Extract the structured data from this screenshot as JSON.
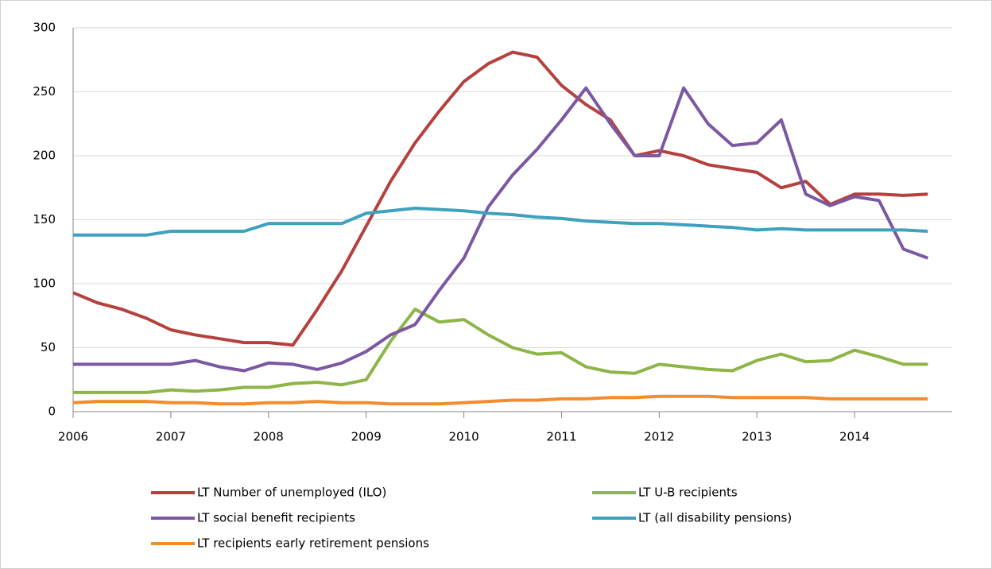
{
  "chart_data": {
    "type": "line",
    "x": [
      2006,
      2006.25,
      2006.5,
      2006.75,
      2007,
      2007.25,
      2007.5,
      2007.75,
      2008,
      2008.25,
      2008.5,
      2008.75,
      2009,
      2009.25,
      2009.5,
      2009.75,
      2010,
      2010.25,
      2010.5,
      2010.75,
      2011,
      2011.25,
      2011.5,
      2011.75,
      2012,
      2012.25,
      2012.5,
      2012.75,
      2013,
      2013.25,
      2013.5,
      2013.75,
      2014,
      2014.25,
      2014.5,
      2014.75
    ],
    "series": [
      {
        "name": "LT Number of unemployed (ILO)",
        "color": "#b5413e",
        "values": [
          93,
          85,
          80,
          73,
          64,
          60,
          57,
          54,
          54,
          52,
          80,
          110,
          145,
          180,
          210,
          235,
          258,
          272,
          281,
          277,
          255,
          240,
          228,
          200,
          204,
          200,
          193,
          190,
          187,
          175,
          180,
          162,
          170,
          170,
          169,
          170
        ]
      },
      {
        "name": "LT U-B recipients",
        "color": "#8db547",
        "values": [
          15,
          15,
          15,
          15,
          17,
          16,
          17,
          19,
          19,
          22,
          23,
          21,
          25,
          55,
          80,
          70,
          72,
          60,
          50,
          45,
          46,
          35,
          31,
          30,
          37,
          35,
          33,
          32,
          40,
          45,
          39,
          40,
          48,
          43,
          37,
          37
        ]
      },
      {
        "name": "LT social benefit recipients",
        "color": "#7c58a3",
        "values": [
          37,
          37,
          37,
          37,
          37,
          40,
          35,
          32,
          38,
          37,
          33,
          38,
          47,
          60,
          68,
          95,
          120,
          160,
          185,
          205,
          228,
          253,
          225,
          200,
          200,
          253,
          225,
          208,
          210,
          228,
          170,
          161,
          168,
          165,
          127,
          120
        ]
      },
      {
        "name": "LT (all disability pensions)",
        "color": "#3fa1bd",
        "values": [
          138,
          138,
          138,
          138,
          141,
          141,
          141,
          141,
          147,
          147,
          147,
          147,
          155,
          157,
          159,
          158,
          157,
          155,
          154,
          152,
          151,
          149,
          148,
          147,
          147,
          146,
          145,
          144,
          142,
          143,
          142,
          142,
          142,
          142,
          142,
          141
        ]
      },
      {
        "name": "LT recipients early retirement pensions",
        "color": "#f28c2e",
        "values": [
          7,
          8,
          8,
          8,
          7,
          7,
          6,
          6,
          7,
          7,
          8,
          7,
          7,
          6,
          6,
          6,
          7,
          8,
          9,
          9,
          10,
          10,
          11,
          11,
          12,
          12,
          12,
          11,
          11,
          11,
          11,
          10,
          10,
          10,
          10,
          10
        ]
      }
    ],
    "xlim": [
      2006,
      2015
    ],
    "xticks": [
      2006,
      2007,
      2008,
      2009,
      2010,
      2011,
      2012,
      2013,
      2014
    ],
    "ylim": [
      0,
      300
    ],
    "yticks": [
      0,
      50,
      100,
      150,
      200,
      250,
      300
    ],
    "grid": true,
    "legend": "bottom"
  }
}
